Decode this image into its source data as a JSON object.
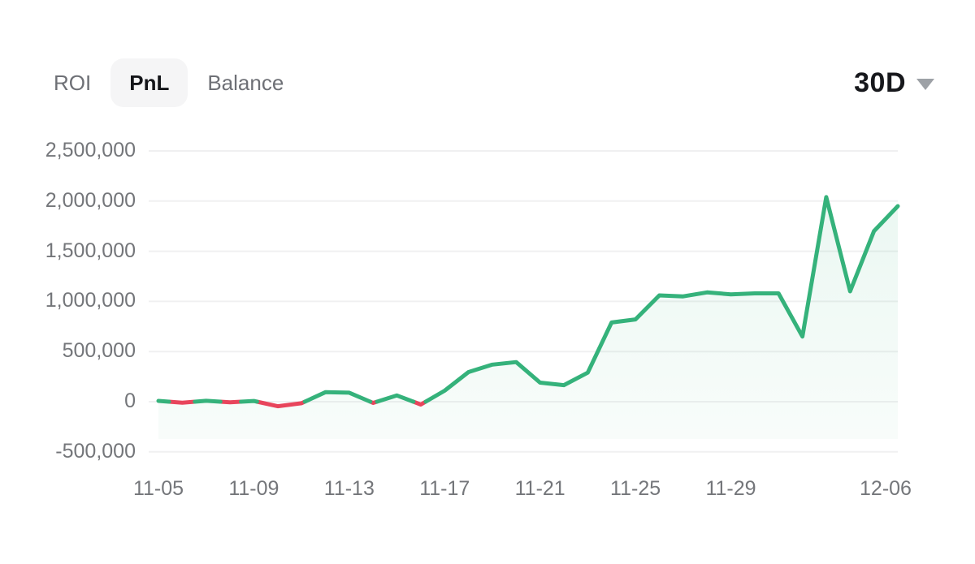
{
  "header": {
    "tabs": [
      {
        "label": "ROI",
        "active": false
      },
      {
        "label": "PnL",
        "active": true
      },
      {
        "label": "Balance",
        "active": false
      }
    ],
    "period": {
      "label": "30D",
      "icon": "caret-down-icon"
    }
  },
  "colors": {
    "positive": "#35b27b",
    "negative": "#e8455c",
    "grid": "#f0f0f1",
    "axis_text": "#74767a",
    "active_tab_bg": "#f5f5f6",
    "active_tab_text": "#141519",
    "inactive_tab_text": "#6e7076",
    "background": "#ffffff"
  },
  "chart_data": {
    "type": "line",
    "title": "",
    "series_name": "PnL",
    "x": [
      "11-05",
      "11-06",
      "11-07",
      "11-08",
      "11-09",
      "11-10",
      "11-11",
      "11-12",
      "11-13",
      "11-14",
      "11-15",
      "11-16",
      "11-17",
      "11-18",
      "11-19",
      "11-20",
      "11-21",
      "11-22",
      "11-23",
      "11-24",
      "11-25",
      "11-26",
      "11-27",
      "11-28",
      "11-29",
      "11-30",
      "12-01",
      "12-02",
      "12-03",
      "12-04",
      "12-05",
      "12-06"
    ],
    "values": [
      8000,
      -10000,
      9000,
      -6000,
      7000,
      -45000,
      -15000,
      95000,
      90000,
      -12000,
      62000,
      -28000,
      110000,
      295000,
      370000,
      395000,
      190000,
      165000,
      290000,
      790000,
      820000,
      1060000,
      1050000,
      1090000,
      1070000,
      1080000,
      1080000,
      650000,
      2040000,
      1100000,
      1700000,
      1950000
    ],
    "ylim": [
      -500000,
      2500000
    ],
    "grid": "horizontal",
    "legend_position": "none",
    "line_color_rule": "green when value >= 0, red when value < 0",
    "y_ticks": [
      {
        "value": 2500000,
        "label": "2,500,000"
      },
      {
        "value": 2000000,
        "label": "2,000,000"
      },
      {
        "value": 1500000,
        "label": "1,500,000"
      },
      {
        "value": 1000000,
        "label": "1,000,000"
      },
      {
        "value": 500000,
        "label": "500,000"
      },
      {
        "value": 0,
        "label": "0"
      },
      {
        "value": -500000,
        "label": "-500,000"
      }
    ],
    "x_ticks": [
      {
        "index": 0,
        "label": "11-05"
      },
      {
        "index": 4,
        "label": "11-09"
      },
      {
        "index": 8,
        "label": "11-13"
      },
      {
        "index": 12,
        "label": "11-17"
      },
      {
        "index": 16,
        "label": "11-21"
      },
      {
        "index": 20,
        "label": "11-25"
      },
      {
        "index": 24,
        "label": "11-29"
      },
      {
        "index": 31,
        "label": "12-06"
      }
    ]
  }
}
